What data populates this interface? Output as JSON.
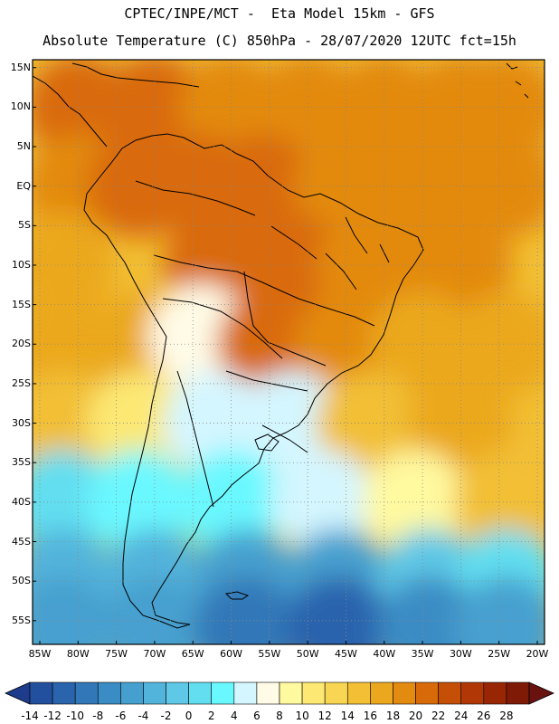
{
  "header": {
    "line1": "CPTEC/INPE/MCT -  Eta Model 15km - GFS",
    "line2": "Absolute Temperature (C) 850hPa - 28/07/2020 12UTC fct=15h"
  },
  "map": {
    "lon_range": [
      -85,
      -20
    ],
    "lat_range": [
      -58,
      16
    ],
    "lat_ticks": [
      {
        "value": 15,
        "label": "15N"
      },
      {
        "value": 10,
        "label": "10N"
      },
      {
        "value": 5,
        "label": "5N"
      },
      {
        "value": 0,
        "label": "EQ"
      },
      {
        "value": -5,
        "label": "5S"
      },
      {
        "value": -10,
        "label": "10S"
      },
      {
        "value": -15,
        "label": "15S"
      },
      {
        "value": -20,
        "label": "20S"
      },
      {
        "value": -25,
        "label": "25S"
      },
      {
        "value": -30,
        "label": "30S"
      },
      {
        "value": -35,
        "label": "35S"
      },
      {
        "value": -40,
        "label": "40S"
      },
      {
        "value": -45,
        "label": "45S"
      },
      {
        "value": -50,
        "label": "50S"
      },
      {
        "value": -55,
        "label": "55S"
      }
    ],
    "lon_ticks": [
      {
        "value": -85,
        "label": "85W"
      },
      {
        "value": -80,
        "label": "80W"
      },
      {
        "value": -75,
        "label": "75W"
      },
      {
        "value": -70,
        "label": "70W"
      },
      {
        "value": -65,
        "label": "65W"
      },
      {
        "value": -60,
        "label": "60W"
      },
      {
        "value": -55,
        "label": "55W"
      },
      {
        "value": -50,
        "label": "50W"
      },
      {
        "value": -45,
        "label": "45W"
      },
      {
        "value": -40,
        "label": "40W"
      },
      {
        "value": -35,
        "label": "35W"
      },
      {
        "value": -30,
        "label": "30W"
      },
      {
        "value": -25,
        "label": "25W"
      },
      {
        "value": -20,
        "label": "20W"
      }
    ],
    "grid": "dotted"
  },
  "colorbar": {
    "labels": [
      "-14",
      "-12",
      "-10",
      "-8",
      "-6",
      "-4",
      "-2",
      "0",
      "2",
      "4",
      "6",
      "8",
      "10",
      "12",
      "14",
      "16",
      "18",
      "20",
      "22",
      "24",
      "26",
      "28"
    ],
    "colors": [
      "#1e3c8c",
      "#23509e",
      "#2a64ad",
      "#3278b8",
      "#3a8cc4",
      "#46a0cf",
      "#52b4db",
      "#5ec8e6",
      "#62def0",
      "#6af8ff",
      "#d4f6ff",
      "#fffbe6",
      "#fff9a0",
      "#fce873",
      "#f8d654",
      "#f2bf35",
      "#eba81f",
      "#e38a10",
      "#d96a0a",
      "#c64f08",
      "#b13806",
      "#982605",
      "#7e1a05",
      "#6a1210"
    ]
  },
  "temperature_field": [
    {
      "lon": -80,
      "lat": 10,
      "t": 19
    },
    {
      "lon": -70,
      "lat": 10,
      "t": 19
    },
    {
      "lon": -60,
      "lat": 10,
      "t": 18
    },
    {
      "lon": -50,
      "lat": 10,
      "t": 18
    },
    {
      "lon": -40,
      "lat": 10,
      "t": 17
    },
    {
      "lon": -30,
      "lat": 10,
      "t": 17
    },
    {
      "lon": -24,
      "lat": 10,
      "t": 17
    },
    {
      "lon": -80,
      "lat": 0,
      "t": 17
    },
    {
      "lon": -72,
      "lat": 0,
      "t": 19
    },
    {
      "lon": -64,
      "lat": 0,
      "t": 19
    },
    {
      "lon": -56,
      "lat": 0,
      "t": 19
    },
    {
      "lon": -45,
      "lat": 0,
      "t": 18
    },
    {
      "lon": -35,
      "lat": 0,
      "t": 17
    },
    {
      "lon": -24,
      "lat": 0,
      "t": 17
    },
    {
      "lon": -82,
      "lat": -10,
      "t": 16
    },
    {
      "lon": -62,
      "lat": -10,
      "t": 20
    },
    {
      "lon": -52,
      "lat": -10,
      "t": 20
    },
    {
      "lon": -42,
      "lat": -10,
      "t": 18
    },
    {
      "lon": -30,
      "lat": -10,
      "t": 17
    },
    {
      "lon": -82,
      "lat": -20,
      "t": 16
    },
    {
      "lon": -72,
      "lat": -20,
      "t": 16
    },
    {
      "lon": -64,
      "lat": -19,
      "t": 6
    },
    {
      "lon": -55,
      "lat": -20,
      "t": 20
    },
    {
      "lon": -45,
      "lat": -20,
      "t": 18
    },
    {
      "lon": -35,
      "lat": -20,
      "t": 15
    },
    {
      "lon": -24,
      "lat": -20,
      "t": 15
    },
    {
      "lon": -82,
      "lat": -30,
      "t": 13
    },
    {
      "lon": -72,
      "lat": -30,
      "t": 10
    },
    {
      "lon": -62,
      "lat": -30,
      "t": 3
    },
    {
      "lon": -52,
      "lat": -30,
      "t": 3
    },
    {
      "lon": -42,
      "lat": -30,
      "t": 14
    },
    {
      "lon": -30,
      "lat": -30,
      "t": 16
    },
    {
      "lon": -82,
      "lat": -40,
      "t": 0
    },
    {
      "lon": -72,
      "lat": -40,
      "t": 2
    },
    {
      "lon": -60,
      "lat": -40,
      "t": 1
    },
    {
      "lon": -48,
      "lat": -40,
      "t": 3
    },
    {
      "lon": -36,
      "lat": -40,
      "t": 8
    },
    {
      "lon": -24,
      "lat": -40,
      "t": 13
    },
    {
      "lon": -82,
      "lat": -50,
      "t": -4
    },
    {
      "lon": -70,
      "lat": -50,
      "t": -4
    },
    {
      "lon": -58,
      "lat": -50,
      "t": -6
    },
    {
      "lon": -46,
      "lat": -50,
      "t": -6
    },
    {
      "lon": -34,
      "lat": -50,
      "t": -2
    },
    {
      "lon": -24,
      "lat": -50,
      "t": 0
    },
    {
      "lon": -82,
      "lat": -56,
      "t": -6
    },
    {
      "lon": -70,
      "lat": -56,
      "t": -6
    },
    {
      "lon": -58,
      "lat": -56,
      "t": -10
    },
    {
      "lon": -46,
      "lat": -56,
      "t": -12
    },
    {
      "lon": -34,
      "lat": -56,
      "t": -8
    },
    {
      "lon": -24,
      "lat": -56,
      "t": -6
    }
  ]
}
